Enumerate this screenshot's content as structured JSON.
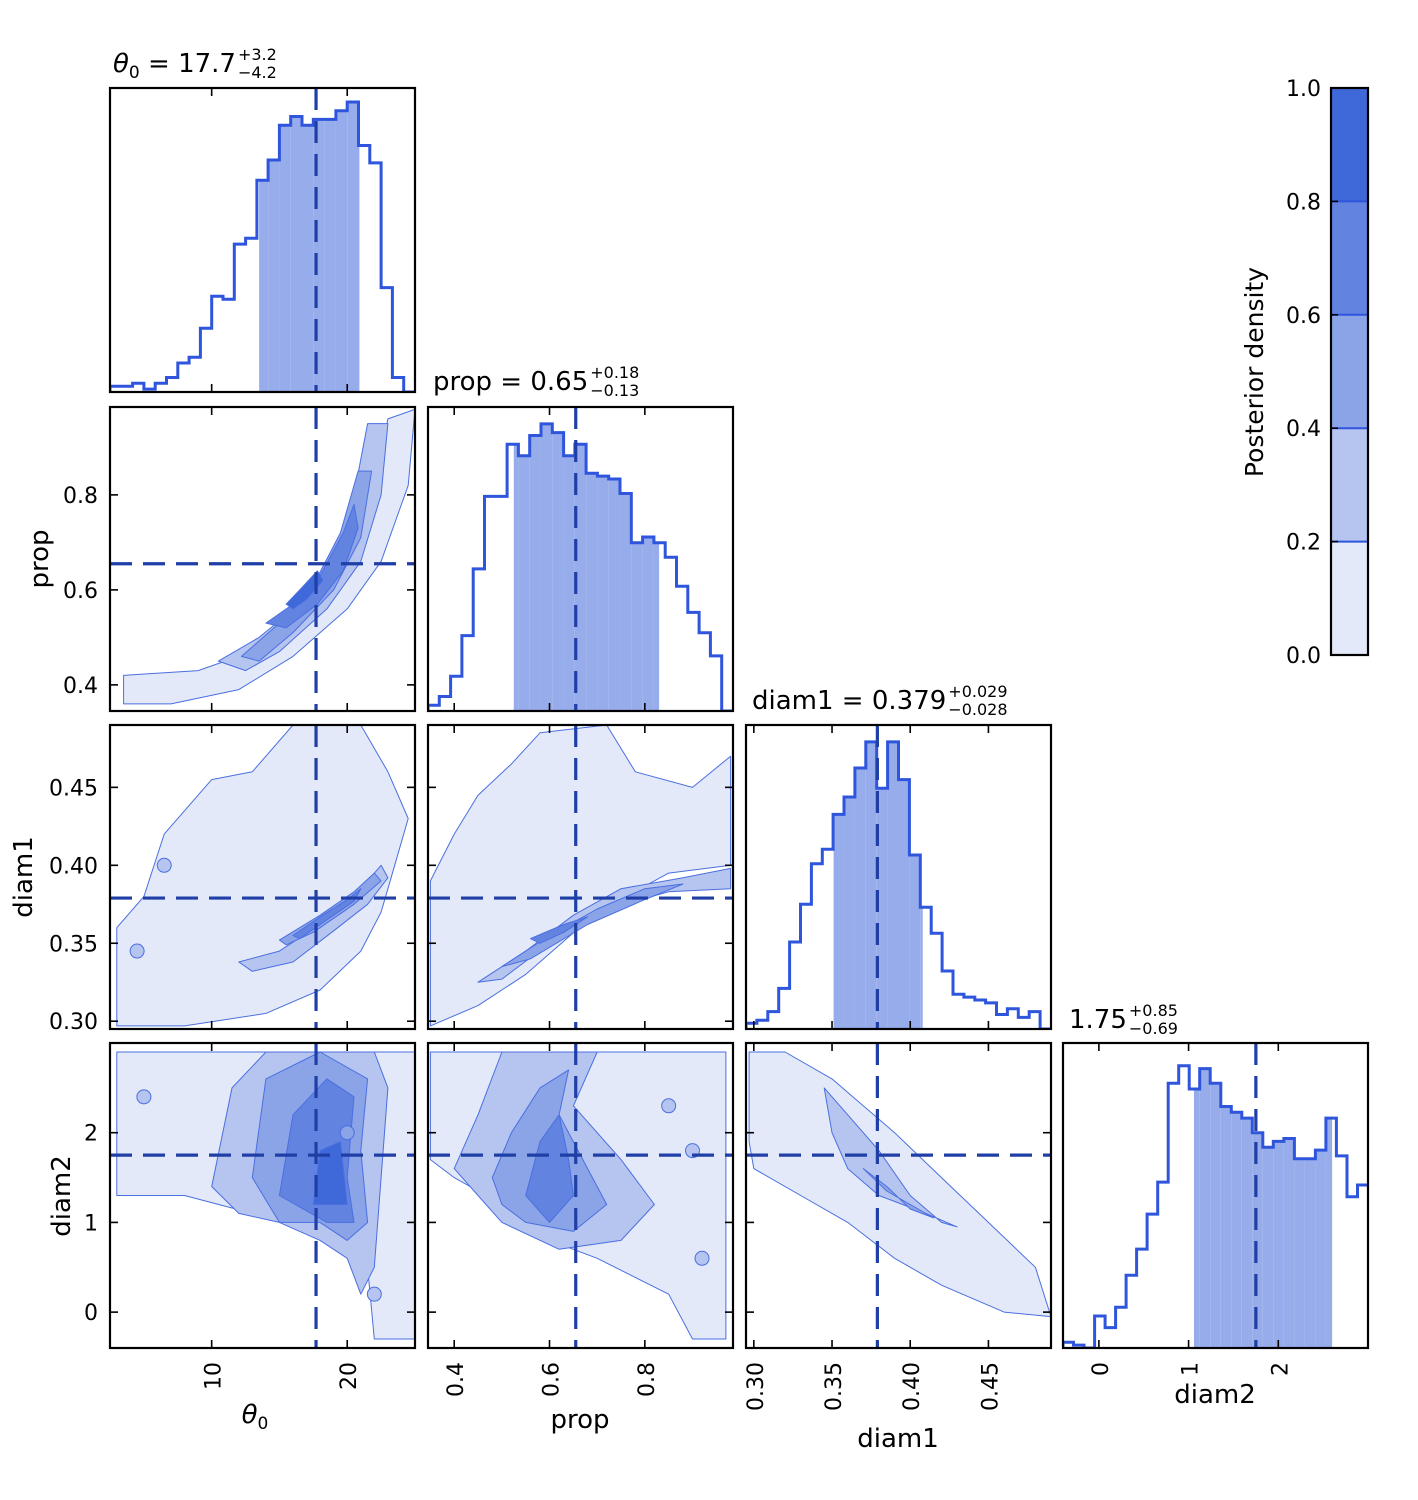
{
  "chart_data": {
    "type": "corner",
    "parameters": [
      {
        "name": "θ",
        "subscript": "0",
        "range": [
          2.5,
          25
        ],
        "ticks": [
          10,
          20
        ],
        "median": 17.7,
        "plus": "+3.2",
        "minus": "−4.2",
        "value_text": "17.7",
        "credible_interval": [
          13.5,
          20.9
        ],
        "hist_edges": [
          2.5,
          4.0,
          5.5,
          6.9,
          8.4,
          9.9,
          11.4,
          12.8,
          14.3,
          15.8,
          17.3,
          18.8,
          20.2,
          21.7,
          23.2,
          25.0
        ],
        "hist": []
      },
      {
        "name": "prop",
        "range": [
          0.345,
          0.985
        ],
        "ticks": [
          0.4,
          0.6,
          0.8
        ],
        "median": 0.655,
        "plus": "+0.18",
        "minus": "−0.13",
        "value_text": "0.65",
        "credible_interval": [
          0.525,
          0.83
        ],
        "hist_edges": [],
        "hist": []
      },
      {
        "name": "diam1",
        "range": [
          0.295,
          0.49
        ],
        "ticks": [
          0.3,
          0.35,
          0.4,
          0.45
        ],
        "median": 0.379,
        "plus": "+0.029",
        "minus": "−0.028",
        "value_text": "0.379",
        "credible_interval": [
          0.351,
          0.408
        ],
        "hist_edges": [],
        "hist": []
      },
      {
        "name": "diam2",
        "range": [
          -0.4,
          3.0
        ],
        "ticks": [
          0,
          1,
          2
        ],
        "median": 1.75,
        "plus": "+0.85",
        "minus": "−0.69",
        "value_text": "1.75",
        "credible_interval": [
          1.06,
          2.6
        ],
        "hist_edges": [],
        "hist": []
      }
    ],
    "marginals": {
      "theta0": {
        "x0": 2.5,
        "x1": 25,
        "values": [
          0.02,
          0.02,
          0.03,
          0.01,
          0.03,
          0.05,
          0.1,
          0.12,
          0.22,
          0.33,
          0.32,
          0.51,
          0.53,
          0.73,
          0.8,
          0.92,
          0.95,
          0.92,
          0.94,
          0.94,
          0.97,
          1.0,
          0.85,
          0.79,
          0.36,
          0.05,
          0.0
        ]
      },
      "prop": {
        "x0": 0.345,
        "x1": 0.985,
        "values": [
          0.02,
          0.05,
          0.12,
          0.26,
          0.49,
          0.74,
          0.74,
          0.92,
          0.88,
          0.95,
          0.99,
          0.96,
          0.88,
          0.92,
          0.82,
          0.81,
          0.8,
          0.75,
          0.58,
          0.6,
          0.58,
          0.53,
          0.43,
          0.34,
          0.27,
          0.19,
          0.0
        ]
      },
      "diam1": {
        "x0": 0.295,
        "x1": 0.49,
        "values": [
          0.02,
          0.03,
          0.06,
          0.14,
          0.3,
          0.43,
          0.57,
          0.62,
          0.74,
          0.8,
          0.9,
          0.99,
          0.83,
          0.99,
          0.86,
          0.6,
          0.42,
          0.33,
          0.2,
          0.12,
          0.11,
          0.1,
          0.09,
          0.05,
          0.07,
          0.04,
          0.06,
          0.0
        ]
      },
      "diam2": {
        "x0": -0.4,
        "x1": 3.0,
        "values": [
          0.02,
          0.01,
          0.0,
          0.11,
          0.07,
          0.14,
          0.25,
          0.34,
          0.46,
          0.57,
          0.91,
          0.97,
          0.89,
          0.96,
          0.91,
          0.83,
          0.81,
          0.79,
          0.74,
          0.69,
          0.71,
          0.72,
          0.65,
          0.65,
          0.68,
          0.79,
          0.66,
          0.52,
          0.56
        ]
      }
    },
    "colorbar": {
      "label": "Posterior density",
      "levels": [
        0.0,
        0.2,
        0.4,
        0.6,
        0.8,
        1.0
      ],
      "ticks": [
        "0.0",
        "0.2",
        "0.4",
        "0.6",
        "0.8",
        "1.0"
      ],
      "colors": [
        "#e3e9f9",
        "#b6c4f0",
        "#8ba4e8",
        "#6283e0",
        "#3f68d8",
        "#3451a8"
      ]
    },
    "colors": {
      "line": "#2e55dc",
      "median": "#1f3fa6",
      "fill": "#97aceb"
    }
  }
}
